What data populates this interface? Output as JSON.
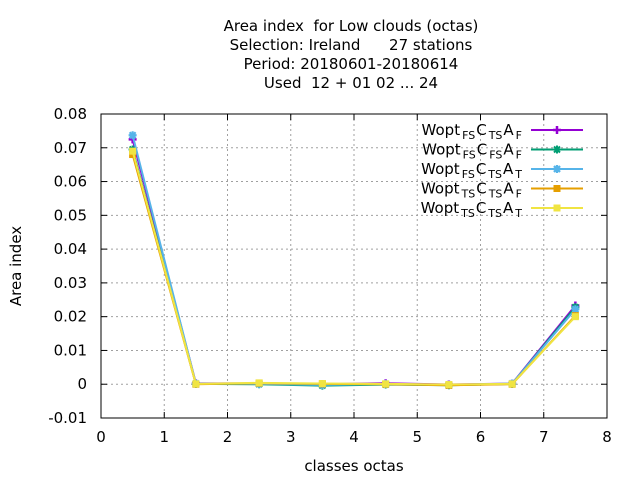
{
  "chart_data": {
    "type": "line",
    "title_lines": [
      "Area index  for Low clouds (octas)",
      "Selection: Ireland      27 stations",
      "Period: 20180601-20180614",
      "Used  12 + 01 02 ... 24"
    ],
    "xlabel": "classes octas",
    "ylabel": "Area index",
    "xlim": [
      0,
      8
    ],
    "ylim": [
      -0.01,
      0.08
    ],
    "xticks": [
      "0",
      "1",
      "2",
      "3",
      "4",
      "5",
      "6",
      "7",
      "8"
    ],
    "yticks": [
      "-0.01",
      "0",
      "0.01",
      "0.02",
      "0.03",
      "0.04",
      "0.05",
      "0.06",
      "0.07",
      "0.08"
    ],
    "grid": true,
    "legend_position": "top-right",
    "x": [
      0.5,
      1.5,
      2.5,
      3.5,
      4.5,
      5.5,
      6.5,
      7.5
    ],
    "series": [
      {
        "name_main": "Wopt",
        "name_parts": [
          [
            "FS",
            "C"
          ],
          [
            "TS",
            "A"
          ],
          [
            "F",
            ""
          ]
        ],
        "color": "#9400d3",
        "marker": "plus",
        "values": [
          0.0725,
          0.0003,
          0.0002,
          0.0,
          0.0003,
          -0.0001,
          0.0002,
          0.0233
        ]
      },
      {
        "name_main": "Wopt",
        "name_parts": [
          [
            "FS",
            "C"
          ],
          [
            "FS",
            "A"
          ],
          [
            "F",
            ""
          ]
        ],
        "color": "#009e73",
        "marker": "cross",
        "values": [
          0.0695,
          0.0001,
          0.0,
          -0.0004,
          -0.0001,
          -0.0003,
          0.0001,
          0.0228
        ]
      },
      {
        "name_main": "Wopt",
        "name_parts": [
          [
            "FS",
            "C"
          ],
          [
            "TS",
            "A"
          ],
          [
            "T",
            ""
          ]
        ],
        "color": "#56b4e9",
        "marker": "star",
        "values": [
          0.0737,
          0.0002,
          0.0001,
          -0.0002,
          0.0001,
          -0.0002,
          0.0002,
          0.0222
        ]
      },
      {
        "name_main": "Wopt",
        "name_parts": [
          [
            "TS",
            "C"
          ],
          [
            "TS",
            "A"
          ],
          [
            "F",
            ""
          ]
        ],
        "color": "#e69f00",
        "marker": "square",
        "values": [
          0.068,
          0.0,
          0.0003,
          0.0001,
          0.0,
          -0.0003,
          0.0,
          0.0203
        ]
      },
      {
        "name_main": "Wopt",
        "name_parts": [
          [
            "TS",
            "C"
          ],
          [
            "TS",
            "A"
          ],
          [
            "T",
            ""
          ]
        ],
        "color": "#f0e442",
        "marker": "square",
        "values": [
          0.069,
          0.0001,
          0.0004,
          0.0002,
          0.0001,
          -0.0001,
          0.0001,
          0.02
        ]
      }
    ]
  }
}
